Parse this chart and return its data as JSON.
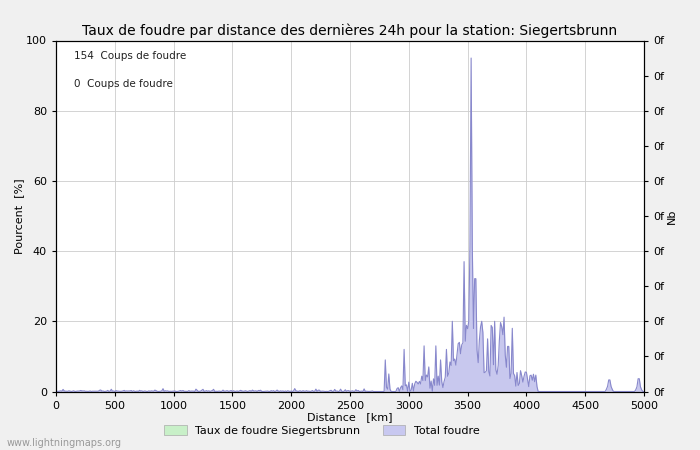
{
  "title": "Taux de foudre par distance des dernières 24h pour la station: Siegertsbrunn",
  "xlabel": "Distance   [km]",
  "ylabel_left": "Pourcent  [%]",
  "ylabel_right": "Nb",
  "annotation_line1": "154  Coups de foudre",
  "annotation_line2": "0  Coups de foudre",
  "legend_label1": "Taux de foudre Siegertsbrunn",
  "legend_label2": "Total foudre",
  "legend_color1": "#c8f0c8",
  "legend_color2": "#c8c8f0",
  "watermark": "www.lightningmaps.org",
  "xlim": [
    0,
    5000
  ],
  "ylim": [
    0,
    100
  ],
  "xticks": [
    0,
    500,
    1000,
    1500,
    2000,
    2500,
    3000,
    3500,
    4000,
    4500,
    5000
  ],
  "yticks_left": [
    0,
    20,
    40,
    60,
    80,
    100
  ],
  "background_color": "#f0f0f0",
  "plot_bg_color": "#ffffff",
  "line_color": "#8888cc",
  "fill_color": "#c8c8ee",
  "grid_color": "#cccccc",
  "title_fontsize": 10,
  "axis_fontsize": 8,
  "tick_fontsize": 8,
  "right_ytick_positions": [
    0,
    10,
    20,
    30,
    40,
    50,
    60,
    70,
    80,
    90,
    100
  ]
}
